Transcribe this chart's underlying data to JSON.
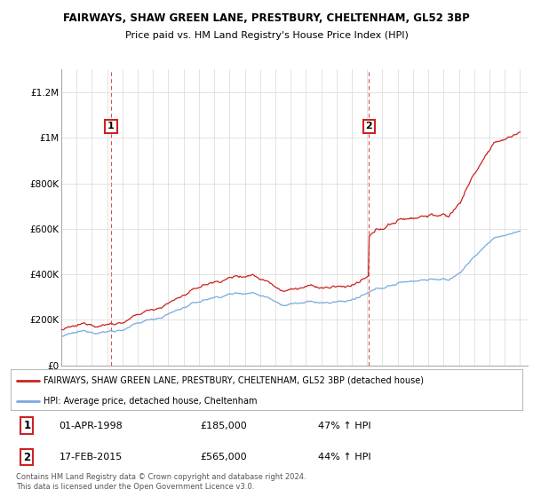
{
  "title": "FAIRWAYS, SHAW GREEN LANE, PRESTBURY, CHELTENHAM, GL52 3BP",
  "subtitle": "Price paid vs. HM Land Registry's House Price Index (HPI)",
  "ylim": [
    0,
    1300000
  ],
  "yticks": [
    0,
    200000,
    400000,
    600000,
    800000,
    1000000,
    1200000
  ],
  "ytick_labels": [
    "£0",
    "£200K",
    "£400K",
    "£600K",
    "£800K",
    "£1M",
    "£1.2M"
  ],
  "xlim_start": 1995.0,
  "xlim_end": 2025.5,
  "sale1_date": 1998.25,
  "sale1_price": 185000,
  "sale1_label": "1",
  "sale2_date": 2015.12,
  "sale2_price": 565000,
  "sale2_label": "2",
  "hpi_color": "#7aaadd",
  "price_color": "#cc2222",
  "legend_label1": "FAIRWAYS, SHAW GREEN LANE, PRESTBURY, CHELTENHAM, GL52 3BP (detached house)",
  "legend_label2": "HPI: Average price, detached house, Cheltenham",
  "table_row1": [
    "1",
    "01-APR-1998",
    "£185,000",
    "47% ↑ HPI"
  ],
  "table_row2": [
    "2",
    "17-FEB-2015",
    "£565,000",
    "44% ↑ HPI"
  ],
  "footnote": "Contains HM Land Registry data © Crown copyright and database right 2024.\nThis data is licensed under the Open Government Licence v3.0.",
  "background_color": "#ffffff"
}
